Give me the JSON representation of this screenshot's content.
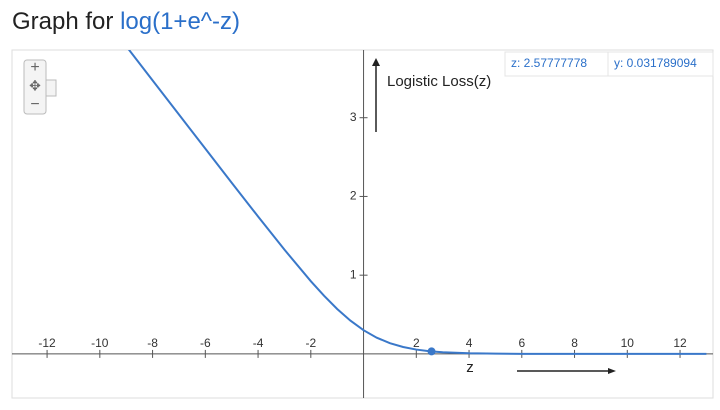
{
  "header": {
    "title": "Graph for",
    "function": "log(1+e^-z)"
  },
  "chart_data": {
    "type": "line",
    "x_label": "z",
    "y_label": "Logistic Loss(z)",
    "x": [
      -9,
      -8,
      -7,
      -6,
      -5,
      -4,
      -3,
      -2,
      -1.5,
      -1,
      -0.5,
      0,
      0.5,
      1,
      1.5,
      2,
      2.5,
      3,
      4,
      5,
      6,
      8,
      10,
      13
    ],
    "values": [
      3.9087,
      3.4745,
      3.0405,
      2.6068,
      2.1744,
      1.7451,
      1.324,
      0.9237,
      0.7389,
      0.5704,
      0.423,
      0.301,
      0.2059,
      0.136,
      0.0875,
      0.0551,
      0.0343,
      0.0211,
      0.00789,
      0.00292,
      0.00108,
      0.000146,
      1.97e-05,
      1e-06
    ],
    "color": "#3a78c9",
    "xlim": [
      -13.33,
      13.25
    ],
    "ylim": [
      -0.56,
      3.86
    ],
    "xticks": [
      -12,
      -10,
      -8,
      -6,
      -4,
      -2,
      2,
      4,
      6,
      8,
      10,
      12
    ],
    "yticks": [
      1,
      2,
      3
    ],
    "grid": false,
    "cursor": {
      "x": 2.57777778,
      "y": 0.031789094,
      "x_label": "z: 2.57777778",
      "y_label": "y: 0.031789094"
    }
  }
}
